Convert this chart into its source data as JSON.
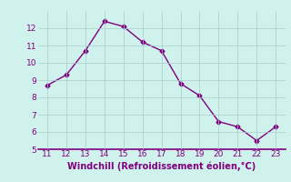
{
  "x": [
    11,
    12,
    13,
    14,
    15,
    16,
    17,
    18,
    19,
    20,
    21,
    22,
    23
  ],
  "y": [
    8.7,
    9.3,
    10.7,
    12.4,
    12.1,
    11.2,
    10.7,
    8.8,
    8.1,
    6.6,
    6.3,
    5.5,
    6.3
  ],
  "line_color": "#800080",
  "marker": "D",
  "marker_size": 2.5,
  "line_width": 1.0,
  "background_color": "#cff2ec",
  "grid_color": "#aacccc",
  "tick_color": "#800080",
  "label_color": "#800080",
  "border_color": "#800080",
  "xlabel": "Windchill (Refroidissement éolien,°C)",
  "xlim": [
    10.5,
    23.5
  ],
  "ylim": [
    5,
    13
  ],
  "xticks": [
    11,
    12,
    13,
    14,
    15,
    16,
    17,
    18,
    19,
    20,
    21,
    22,
    23
  ],
  "yticks": [
    5,
    6,
    7,
    8,
    9,
    10,
    11,
    12
  ],
  "xlabel_fontsize": 7.0,
  "tick_fontsize": 6.5
}
